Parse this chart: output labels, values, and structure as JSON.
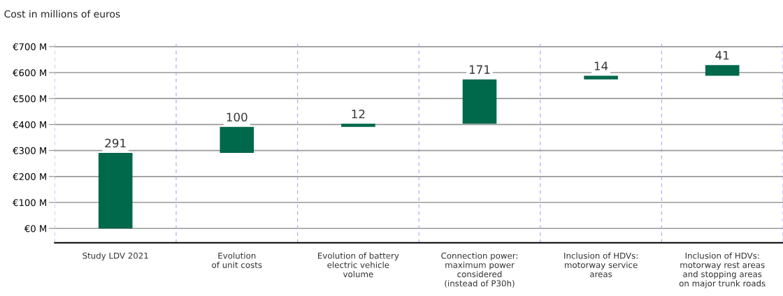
{
  "chart_data": {
    "type": "bar",
    "ylabel": "Cost in millions of euros",
    "categories": [
      "Study LDV 2021",
      "Evolution\nof unit costs",
      "Evolution of battery\nelectric vehicle\nvolume",
      "Connection power:\nmaximum power\nconsidered\n(instead of P30h)",
      "Inclusion of HDVs:\nmotorway service\nareas",
      "Inclusion of HDVs:\nmotorway rest areas\nand stopping areas\non major trunk roads"
    ],
    "values": [
      291,
      100,
      12,
      171,
      14,
      41
    ],
    "base": [
      0,
      291,
      391,
      403,
      574,
      588
    ],
    "color": "#00684b",
    "ylim": [
      -55,
      720
    ],
    "yticks": [
      {
        "value": 0,
        "label": "€0 M"
      },
      {
        "value": 100,
        "label": "€100 M"
      },
      {
        "value": 200,
        "label": "€200 M"
      },
      {
        "value": 300,
        "label": "€300 M"
      },
      {
        "value": 400,
        "label": "€400 M"
      },
      {
        "value": 500,
        "label": "€500 M"
      },
      {
        "value": 600,
        "label": "€600 M"
      },
      {
        "value": 700,
        "label": "€700 M"
      }
    ],
    "grid": true,
    "data_labels": true,
    "legend": false
  }
}
